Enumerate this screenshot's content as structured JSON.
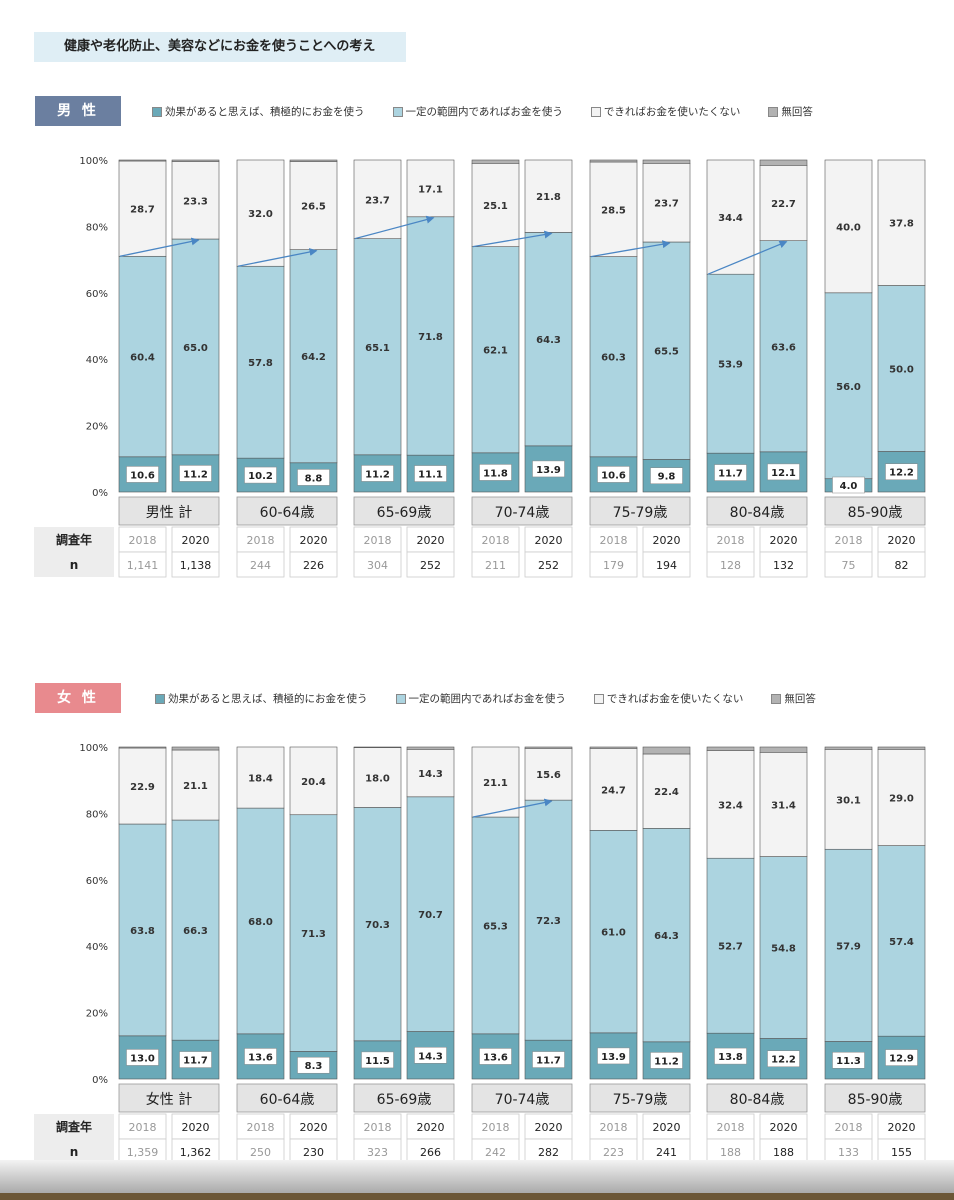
{
  "title": "健康や老化防止、美容などにお金を使うことへの考え",
  "legend": {
    "items": [
      {
        "label": "効果があると思えば、積極的にお金を使う",
        "color": "#6aa9b8"
      },
      {
        "label": "一定の範囲内であればお金を使う",
        "color": "#acd4e0"
      },
      {
        "label": "できればお金を使いたくない",
        "color": "#f3f3f3"
      },
      {
        "label": "無回答",
        "color": "#b2b2b2"
      }
    ]
  },
  "table_labels": {
    "year_row": "調査年",
    "n_row": "n"
  },
  "chart_data": [
    {
      "type": "bar",
      "stacked": true,
      "title": "男 性",
      "yticks": [
        "100%",
        "80%",
        "60%",
        "40%",
        "20%",
        "0%"
      ],
      "ylim": [
        0,
        100
      ],
      "groups": [
        {
          "label": "男性 計",
          "years": [
            "2018",
            "2020"
          ],
          "n": [
            "1,141",
            "1,138"
          ],
          "active": [
            10.6,
            11.2
          ],
          "within": [
            60.4,
            65.0
          ],
          "rather_not": [
            28.7,
            23.3
          ],
          "no_answer": [
            0.3,
            0.5
          ],
          "arrow": true
        },
        {
          "label": "60-64歳",
          "years": [
            "2018",
            "2020"
          ],
          "n": [
            "244",
            "226"
          ],
          "active": [
            10.2,
            8.8
          ],
          "within": [
            57.8,
            64.2
          ],
          "rather_not": [
            32.0,
            26.5
          ],
          "no_answer": [
            0,
            0.5
          ],
          "arrow": true
        },
        {
          "label": "65-69歳",
          "years": [
            "2018",
            "2020"
          ],
          "n": [
            "304",
            "252"
          ],
          "active": [
            11.2,
            11.1
          ],
          "within": [
            65.1,
            71.8
          ],
          "rather_not": [
            23.7,
            17.1
          ],
          "no_answer": [
            0,
            0
          ],
          "arrow": true
        },
        {
          "label": "70-74歳",
          "years": [
            "2018",
            "2020"
          ],
          "n": [
            "211",
            "252"
          ],
          "active": [
            11.8,
            13.9
          ],
          "within": [
            62.1,
            64.3
          ],
          "rather_not": [
            25.1,
            21.8
          ],
          "no_answer": [
            1.0,
            0
          ],
          "arrow": true
        },
        {
          "label": "75-79歳",
          "years": [
            "2018",
            "2020"
          ],
          "n": [
            "179",
            "194"
          ],
          "active": [
            10.6,
            9.8
          ],
          "within": [
            60.3,
            65.5
          ],
          "rather_not": [
            28.5,
            23.7
          ],
          "no_answer": [
            0.6,
            1.0
          ],
          "arrow": true
        },
        {
          "label": "80-84歳",
          "years": [
            "2018",
            "2020"
          ],
          "n": [
            "128",
            "132"
          ],
          "active": [
            11.7,
            12.1
          ],
          "within": [
            53.9,
            63.6
          ],
          "rather_not": [
            34.4,
            22.7
          ],
          "no_answer": [
            0,
            1.6
          ],
          "arrow": true
        },
        {
          "label": "85-90歳",
          "years": [
            "2018",
            "2020"
          ],
          "n": [
            "75",
            "82"
          ],
          "active": [
            4.0,
            12.2
          ],
          "within": [
            56.0,
            50.0
          ],
          "rather_not": [
            40.0,
            37.8
          ],
          "no_answer": [
            0,
            0
          ],
          "arrow": false
        }
      ]
    },
    {
      "type": "bar",
      "stacked": true,
      "title": "女 性",
      "yticks": [
        "100%",
        "80%",
        "60%",
        "40%",
        "20%",
        "0%"
      ],
      "ylim": [
        0,
        100
      ],
      "groups": [
        {
          "label": "女性 計",
          "years": [
            "2018",
            "2020"
          ],
          "n": [
            "1,359",
            "1,362"
          ],
          "active": [
            13.0,
            11.7
          ],
          "within": [
            63.8,
            66.3
          ],
          "rather_not": [
            22.9,
            21.1
          ],
          "no_answer": [
            0.3,
            0.9
          ],
          "arrow": false
        },
        {
          "label": "60-64歳",
          "years": [
            "2018",
            "2020"
          ],
          "n": [
            "250",
            "230"
          ],
          "active": [
            13.6,
            8.3
          ],
          "within": [
            68.0,
            71.3
          ],
          "rather_not": [
            18.4,
            20.4
          ],
          "no_answer": [
            0,
            0
          ],
          "arrow": false
        },
        {
          "label": "65-69歳",
          "years": [
            "2018",
            "2020"
          ],
          "n": [
            "323",
            "266"
          ],
          "active": [
            11.5,
            14.3
          ],
          "within": [
            70.3,
            70.7
          ],
          "rather_not": [
            18.0,
            14.3
          ],
          "no_answer": [
            0.2,
            0.7
          ],
          "arrow": false
        },
        {
          "label": "70-74歳",
          "years": [
            "2018",
            "2020"
          ],
          "n": [
            "242",
            "282"
          ],
          "active": [
            13.6,
            11.7
          ],
          "within": [
            65.3,
            72.3
          ],
          "rather_not": [
            21.1,
            15.6
          ],
          "no_answer": [
            0,
            0.4
          ],
          "arrow": true
        },
        {
          "label": "75-79歳",
          "years": [
            "2018",
            "2020"
          ],
          "n": [
            "223",
            "241"
          ],
          "active": [
            13.9,
            11.2
          ],
          "within": [
            61.0,
            64.3
          ],
          "rather_not": [
            24.7,
            22.4
          ],
          "no_answer": [
            0.4,
            2.1
          ],
          "arrow": false
        },
        {
          "label": "80-84歳",
          "years": [
            "2018",
            "2020"
          ],
          "n": [
            "188",
            "188"
          ],
          "active": [
            13.8,
            12.2
          ],
          "within": [
            52.7,
            54.8
          ],
          "rather_not": [
            32.4,
            31.4
          ],
          "no_answer": [
            1.1,
            1.6
          ],
          "arrow": false
        },
        {
          "label": "85-90歳",
          "years": [
            "2018",
            "2020"
          ],
          "n": [
            "133",
            "155"
          ],
          "active": [
            11.3,
            12.9
          ],
          "within": [
            57.9,
            57.4
          ],
          "rather_not": [
            30.1,
            29.0
          ],
          "no_answer": [
            0.7,
            0.7
          ],
          "arrow": false
        }
      ]
    }
  ]
}
